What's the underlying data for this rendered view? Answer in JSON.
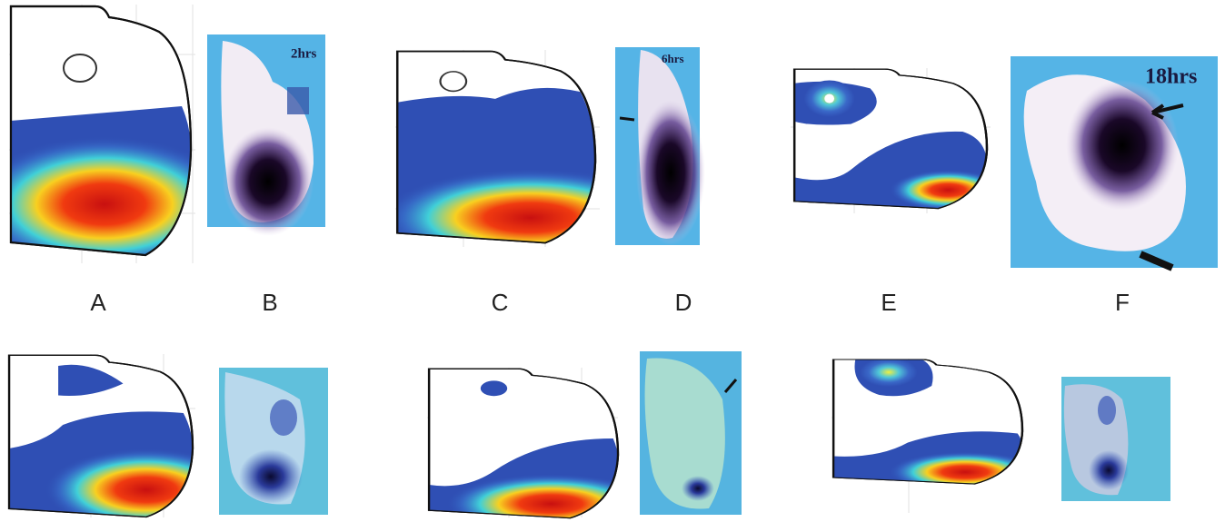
{
  "panel_labels": [
    "A",
    "B",
    "C",
    "D",
    "E",
    "F"
  ],
  "annotations": {
    "b": "2hrs",
    "d": "6hrs",
    "f": "18hrs"
  }
}
